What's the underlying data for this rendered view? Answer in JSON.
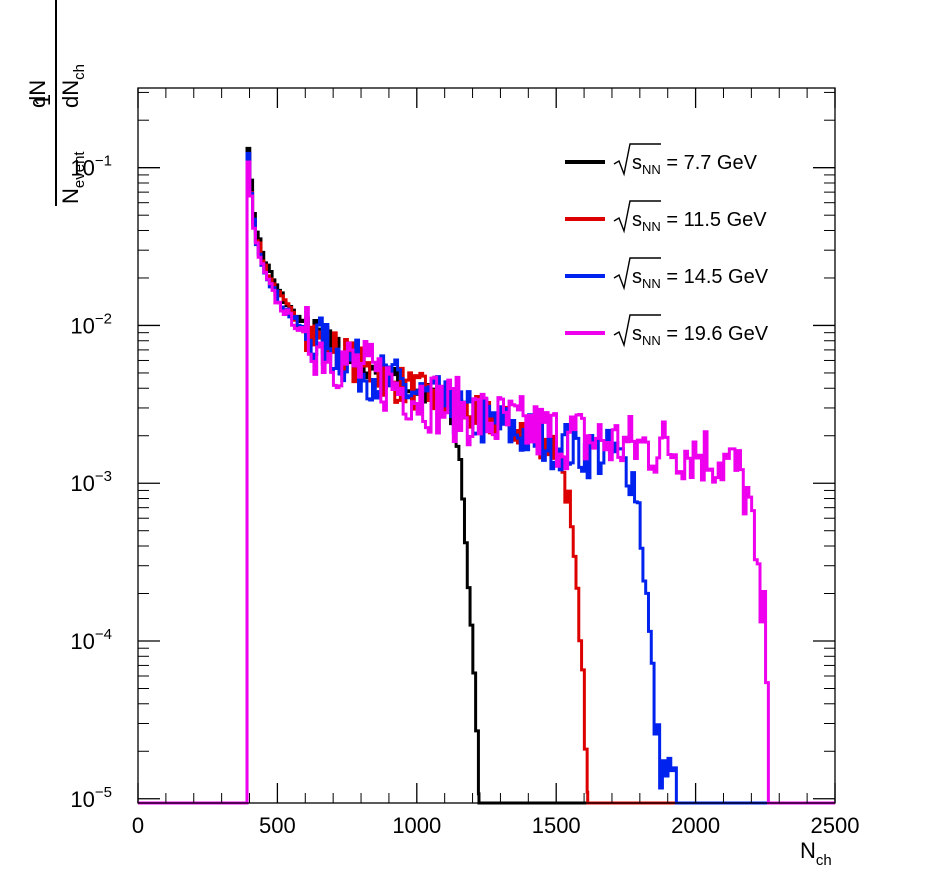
{
  "chart_data": {
    "type": "line",
    "xlabel": "N",
    "xlabel_sub": "ch",
    "ylabel": {
      "numerator": "1",
      "den_N": "N",
      "den_event": "event",
      "dN": "dN",
      "dN_ch_den": "dN",
      "ch": "ch"
    },
    "xlim": [
      0,
      2500
    ],
    "ylim": [
      9.4e-06,
      0.32
    ],
    "yscale": "log",
    "xticks": [
      0,
      500,
      1000,
      1500,
      2000,
      2500
    ],
    "xtick_labels": [
      "0",
      "500",
      "1000",
      "1500",
      "2000",
      "2500"
    ],
    "yticks": [
      1e-05,
      0.0001,
      0.001,
      0.01,
      0.1
    ],
    "ytick_labels": [
      {
        "base": "10",
        "exp": "−5"
      },
      {
        "base": "10",
        "exp": "−4"
      },
      {
        "base": "10",
        "exp": "−3"
      },
      {
        "base": "10",
        "exp": "−2"
      },
      {
        "base": "10",
        "exp": "−1"
      }
    ],
    "grid": false,
    "legend_position": "top-right",
    "series": [
      {
        "name": "√sNN = 7.7 GeV",
        "legend": {
          "s": "s",
          "sub": "NN",
          "rest": " = 7.7 GeV"
        },
        "color": "#000000",
        "x": [
          0,
          390,
          391,
          400,
          420,
          450,
          500,
          550,
          600,
          700,
          800,
          900,
          1000,
          1080,
          1120,
          1150,
          1165,
          1180,
          1195,
          1210,
          1222,
          1223,
          2500
        ],
        "y": [
          9.4e-06,
          9.4e-06,
          0.22,
          0.1,
          0.045,
          0.027,
          0.017,
          0.0125,
          0.01,
          0.0075,
          0.0058,
          0.0047,
          0.0039,
          0.0032,
          0.0027,
          0.0018,
          0.0009,
          0.00035,
          0.00012,
          4e-05,
          2.5e-05,
          9.4e-06,
          9.4e-06
        ]
      },
      {
        "name": "√sNN = 11.5 GeV",
        "legend": {
          "s": "s",
          "sub": "NN",
          "rest": " = 11.5 GeV"
        },
        "color": "#dd0000",
        "x": [
          0,
          390,
          391,
          400,
          420,
          450,
          500,
          550,
          600,
          700,
          800,
          900,
          1000,
          1100,
          1200,
          1300,
          1400,
          1480,
          1520,
          1545,
          1560,
          1575,
          1590,
          1605,
          1612,
          1613,
          2500
        ],
        "y": [
          9.4e-06,
          9.4e-06,
          0.2,
          0.09,
          0.04,
          0.025,
          0.016,
          0.012,
          0.0095,
          0.0072,
          0.0055,
          0.0045,
          0.0038,
          0.0032,
          0.0027,
          0.0024,
          0.0021,
          0.0018,
          0.0014,
          0.0008,
          0.00035,
          0.00018,
          7e-05,
          3e-05,
          1.6e-05,
          9.4e-06,
          9.4e-06
        ]
      },
      {
        "name": "√sNN = 14.5 GeV",
        "legend": {
          "s": "s",
          "sub": "NN",
          "rest": " = 14.5 GeV"
        },
        "color": "#0022ee",
        "x": [
          0,
          390,
          391,
          400,
          420,
          450,
          500,
          550,
          600,
          700,
          800,
          900,
          1000,
          1100,
          1200,
          1300,
          1400,
          1500,
          1600,
          1700,
          1760,
          1790,
          1810,
          1830,
          1845,
          1860,
          1880,
          1900,
          1930,
          1931,
          2500
        ],
        "y": [
          9.4e-06,
          9.4e-06,
          0.19,
          0.085,
          0.038,
          0.024,
          0.015,
          0.0115,
          0.009,
          0.0068,
          0.0053,
          0.0044,
          0.0037,
          0.0031,
          0.0026,
          0.0023,
          0.002,
          0.0018,
          0.0016,
          0.0015,
          0.0013,
          0.0009,
          0.0004,
          0.00015,
          6e-05,
          2.5e-05,
          1.5e-05,
          1.5e-05,
          1.2e-05,
          9.4e-06,
          9.4e-06
        ]
      },
      {
        "name": "√sNN = 19.6 GeV",
        "legend": {
          "s": "s",
          "sub": "NN",
          "rest": " = 19.6 GeV"
        },
        "color": "#ee00ee",
        "x": [
          0,
          390,
          391,
          400,
          420,
          450,
          500,
          550,
          600,
          700,
          800,
          900,
          1000,
          1100,
          1200,
          1300,
          1400,
          1500,
          1600,
          1700,
          1800,
          1900,
          2000,
          2100,
          2150,
          2190,
          2210,
          2225,
          2240,
          2255,
          2265,
          2266,
          2500
        ],
        "y": [
          9.4e-06,
          9.4e-06,
          0.18,
          0.08,
          0.035,
          0.022,
          0.014,
          0.011,
          0.0085,
          0.0065,
          0.0052,
          0.0043,
          0.0037,
          0.0031,
          0.0027,
          0.0024,
          0.0022,
          0.002,
          0.0019,
          0.0018,
          0.0017,
          0.0017,
          0.0016,
          0.0014,
          0.0012,
          0.0008,
          0.0004,
          0.0002,
          0.00015,
          0.0001,
          2e-05,
          9.4e-06,
          9.4e-06
        ]
      }
    ]
  }
}
